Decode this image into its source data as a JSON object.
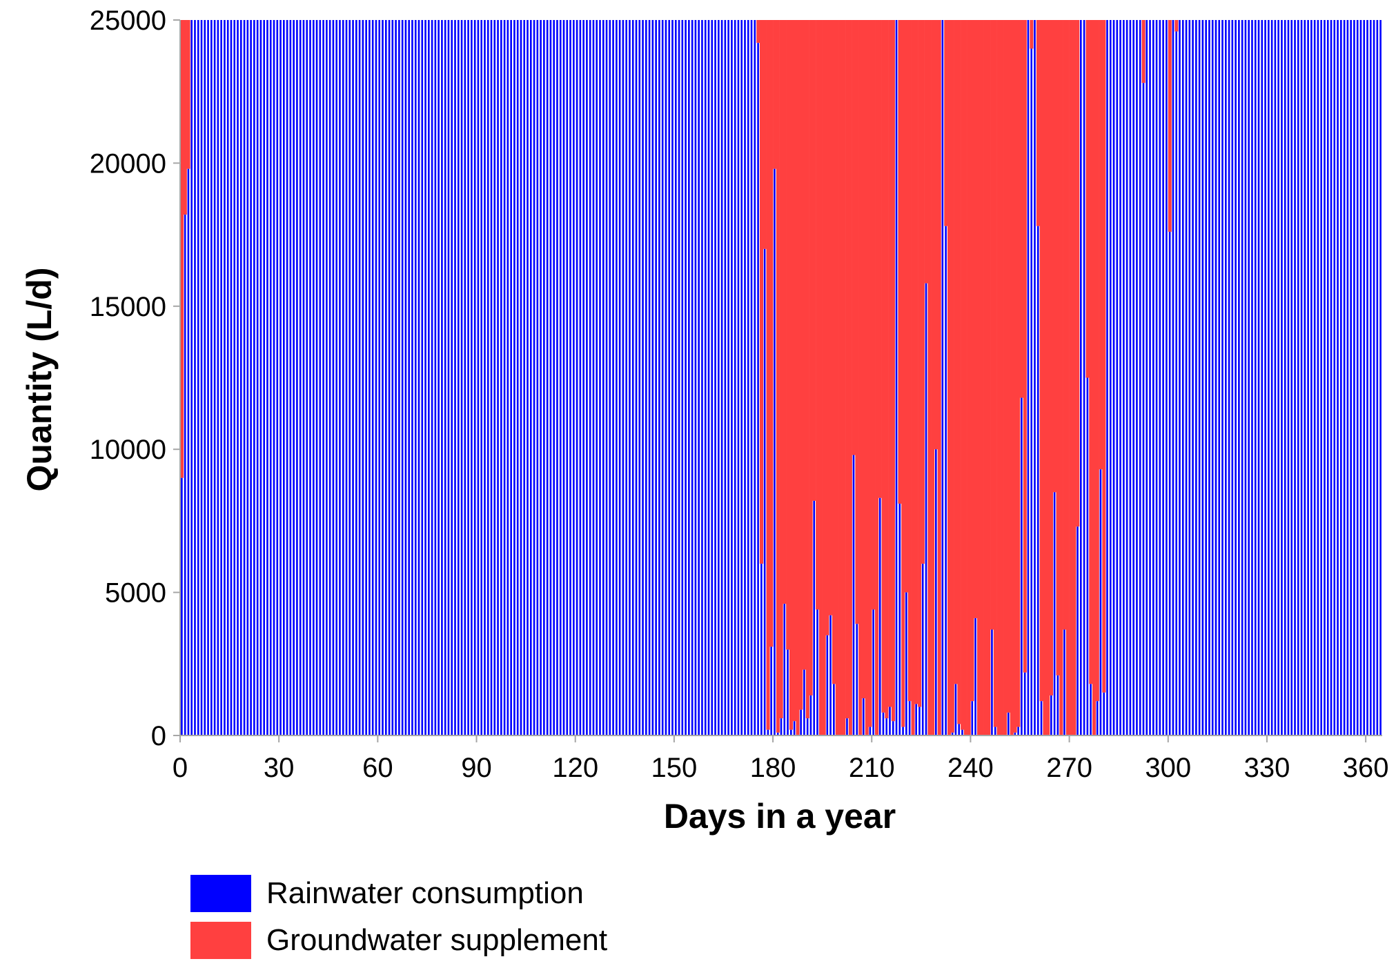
{
  "chart_data": {
    "type": "bar",
    "stacked": true,
    "xlabel": "Days in a year",
    "ylabel": "Quantity (L/d)",
    "xlim": [
      0,
      365
    ],
    "ylim": [
      0,
      25000
    ],
    "x_ticks": [
      0,
      30,
      60,
      90,
      120,
      150,
      180,
      210,
      240,
      270,
      300,
      330,
      360
    ],
    "y_ticks": [
      0,
      5000,
      10000,
      15000,
      20000,
      25000
    ],
    "daily_demand": 25000,
    "colors": {
      "rainwater": "#0000ff",
      "groundwater": "#ff4040",
      "axis": "#a6a6a6"
    },
    "legend": [
      {
        "label": "Rainwater consumption",
        "color": "#0000ff"
      },
      {
        "label": "Groundwater supplement",
        "color": "#ff4040"
      }
    ],
    "series": [
      {
        "name": "Rainwater consumption",
        "note": "Days 1-365; days not listed in 'exceptions' equal 25000",
        "default_value": 25000,
        "exceptions": {
          "1": 9000,
          "2": 18200,
          "3": 19800,
          "176": 24200,
          "177": 6000,
          "178": 17000,
          "179": 200,
          "180": 3100,
          "181": 19800,
          "182": 100,
          "183": 600,
          "184": 4600,
          "185": 3000,
          "186": 200,
          "187": 500,
          "188": 0,
          "189": 900,
          "190": 2300,
          "191": 600,
          "192": 1400,
          "193": 8200,
          "194": 4400,
          "195": 0,
          "196": 0,
          "197": 3500,
          "198": 4200,
          "199": 1800,
          "200": 0,
          "201": 0,
          "202": 0,
          "203": 600,
          "204": 0,
          "205": 9800,
          "206": 3900,
          "207": 0,
          "208": 1300,
          "209": 0,
          "210": 300,
          "211": 4400,
          "212": 0,
          "213": 8300,
          "214": 800,
          "215": 600,
          "216": 1000,
          "217": 500,
          "218": 25000,
          "219": 8100,
          "220": 300,
          "221": 5000,
          "222": 1200,
          "223": 0,
          "224": 1100,
          "225": 1000,
          "226": 6000,
          "227": 15800,
          "228": 0,
          "229": 0,
          "230": 10000,
          "231": 0,
          "232": 25000,
          "233": 17800,
          "234": 0,
          "235": 100,
          "236": 1800,
          "237": 400,
          "238": 200,
          "239": 0,
          "240": 0,
          "241": 1200,
          "242": 4100,
          "243": 0,
          "244": 0,
          "245": 0,
          "246": 0,
          "247": 3700,
          "248": 300,
          "249": 0,
          "250": 0,
          "251": 0,
          "252": 800,
          "253": 0,
          "254": 100,
          "255": 300,
          "256": 11800,
          "257": 2200,
          "258": 25000,
          "259": 24000,
          "260": 25000,
          "261": 17800,
          "262": 1200,
          "263": 0,
          "264": 0,
          "265": 1400,
          "266": 8500,
          "267": 2100,
          "268": 0,
          "269": 3700,
          "270": 0,
          "271": 0,
          "272": 0,
          "273": 7300,
          "274": 25000,
          "275": 25000,
          "276": 12500,
          "277": 1800,
          "278": 0,
          "279": 1200,
          "280": 9300,
          "281": 1500,
          "293": 22800,
          "301": 17600,
          "303": 24600
        }
      },
      {
        "name": "Groundwater supplement",
        "note": "Equals daily_demand minus rainwater consumption for each day"
      }
    ]
  }
}
